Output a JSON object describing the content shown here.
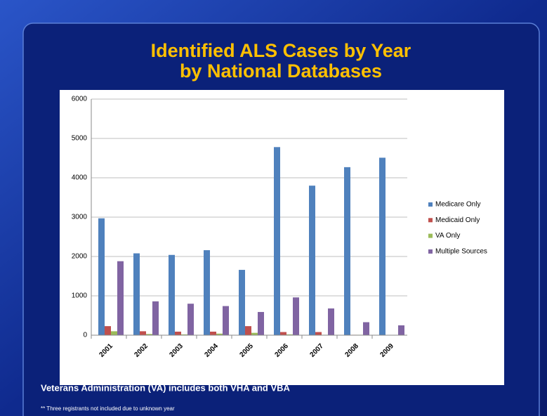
{
  "chart_data": {
    "type": "bar",
    "title": [
      "Identified ALS Cases by Year",
      "by National Databases"
    ],
    "categories": [
      "2001",
      "2002",
      "2003",
      "2004",
      "2005",
      "2006",
      "2007",
      "2008",
      "2009"
    ],
    "series": [
      {
        "name": "Medicare Only",
        "color": "#4f81bd",
        "values": [
          2970,
          2080,
          2040,
          2160,
          1660,
          4780,
          3800,
          4270,
          4510
        ]
      },
      {
        "name": "Medicaid Only",
        "color": "#c0504d",
        "values": [
          230,
          100,
          90,
          90,
          230,
          80,
          80,
          10,
          5
        ]
      },
      {
        "name": "VA Only",
        "color": "#9bbb59",
        "values": [
          100,
          30,
          20,
          40,
          60,
          20,
          10,
          10,
          5
        ]
      },
      {
        "name": "Multiple Sources",
        "color": "#8064a2",
        "values": [
          1880,
          860,
          800,
          740,
          590,
          960,
          680,
          330,
          250
        ]
      }
    ],
    "ylim": [
      0,
      6000
    ],
    "yticks": [
      0,
      1000,
      2000,
      3000,
      4000,
      5000,
      6000
    ],
    "grid": true,
    "legend": "right",
    "annotations": [
      "Veterans Administration (VA)  includes both VHA and VBA",
      "** Three registrants not included due to unknown year"
    ]
  }
}
